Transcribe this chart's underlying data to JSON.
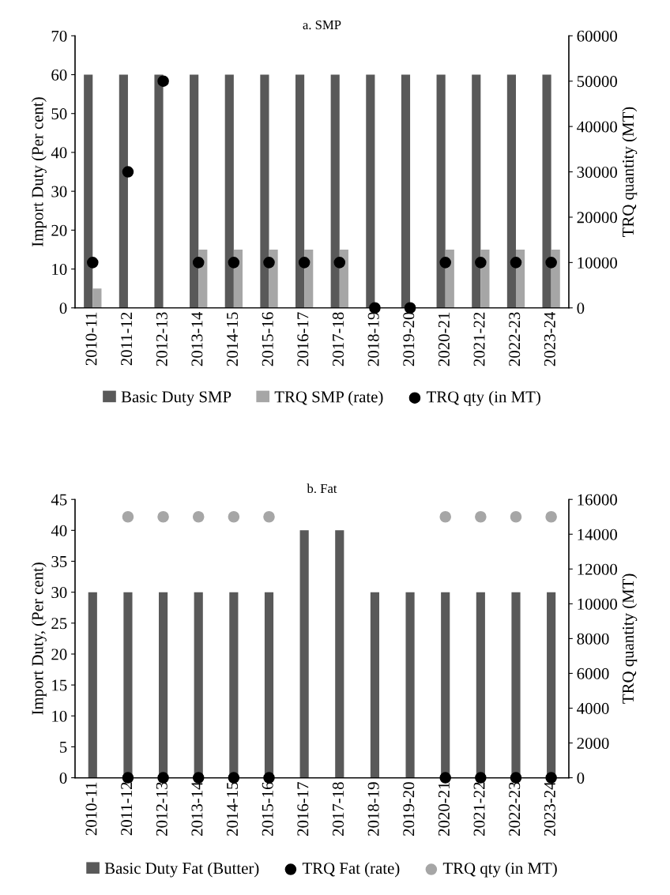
{
  "chart_data": [
    {
      "type": "bar",
      "title": "a. SMP",
      "ylabel": "Import Duty (Per cent)",
      "y2label": "TRQ quantity (MT)",
      "categories": [
        "2010-11",
        "2011-12",
        "2012-13",
        "2013-14",
        "2014-15",
        "2015-16",
        "2016-17",
        "2017-18",
        "2018-19",
        "2019-20",
        "2020-21",
        "2021-22",
        "2022-23",
        "2023-24"
      ],
      "series": [
        {
          "name": "Basic Duty SMP",
          "type": "bar",
          "color": "#595959",
          "values": [
            60,
            60,
            60,
            60,
            60,
            60,
            60,
            60,
            60,
            60,
            60,
            60,
            60,
            60
          ]
        },
        {
          "name": "TRQ SMP (rate)",
          "type": "bar",
          "color": "#a6a6a6",
          "values": [
            5,
            null,
            null,
            15,
            15,
            15,
            15,
            15,
            null,
            null,
            15,
            15,
            15,
            15
          ]
        },
        {
          "name": "TRQ qty (in MT)",
          "type": "scatter",
          "axis": "y2",
          "color": "#000000",
          "values": [
            10000,
            30000,
            50000,
            10000,
            10000,
            10000,
            10000,
            10000,
            0,
            0,
            10000,
            10000,
            10000,
            10000
          ]
        }
      ],
      "ylim": [
        0,
        70
      ],
      "yticks": [
        0,
        10,
        20,
        30,
        40,
        50,
        60,
        70
      ],
      "y2lim": [
        0,
        60000
      ],
      "y2ticks": [
        0,
        10000,
        20000,
        30000,
        40000,
        50000,
        60000
      ],
      "legend": "bottom",
      "marker": "circle",
      "grid": false
    },
    {
      "type": "bar",
      "title": "b. Fat",
      "ylabel": "Import Duty, (Per cent)",
      "y2label": "TRQ quantity (MT)",
      "categories": [
        "2010-11",
        "2011-12",
        "2012-13",
        "2013-14",
        "2014-15",
        "2015-16",
        "2016-17",
        "2017-18",
        "2018-19",
        "2019-20",
        "2020-21",
        "2021-22",
        "2022-23",
        "2023-24"
      ],
      "series": [
        {
          "name": "Basic Duty Fat (Butter)",
          "type": "bar",
          "color": "#595959",
          "values": [
            30,
            30,
            30,
            30,
            30,
            30,
            40,
            40,
            30,
            30,
            30,
            30,
            30,
            30
          ]
        },
        {
          "name": "TRQ Fat (rate)",
          "type": "scatter",
          "color": "#000000",
          "values": [
            null,
            0,
            0,
            0,
            0,
            0,
            null,
            null,
            null,
            null,
            0,
            0,
            0,
            0
          ]
        },
        {
          "name": "TRQ qty (in MT)",
          "type": "scatter",
          "axis": "y2",
          "color": "#a6a6a6",
          "values": [
            null,
            15000,
            15000,
            15000,
            15000,
            15000,
            null,
            null,
            null,
            null,
            15000,
            15000,
            15000,
            15000
          ]
        }
      ],
      "ylim": [
        0,
        45
      ],
      "yticks": [
        0,
        5,
        10,
        15,
        20,
        25,
        30,
        35,
        40,
        45
      ],
      "y2lim": [
        0,
        16000
      ],
      "y2ticks": [
        0,
        2000,
        4000,
        6000,
        8000,
        10000,
        12000,
        14000,
        16000
      ],
      "legend": "bottom",
      "marker": "circle",
      "grid": false
    }
  ]
}
